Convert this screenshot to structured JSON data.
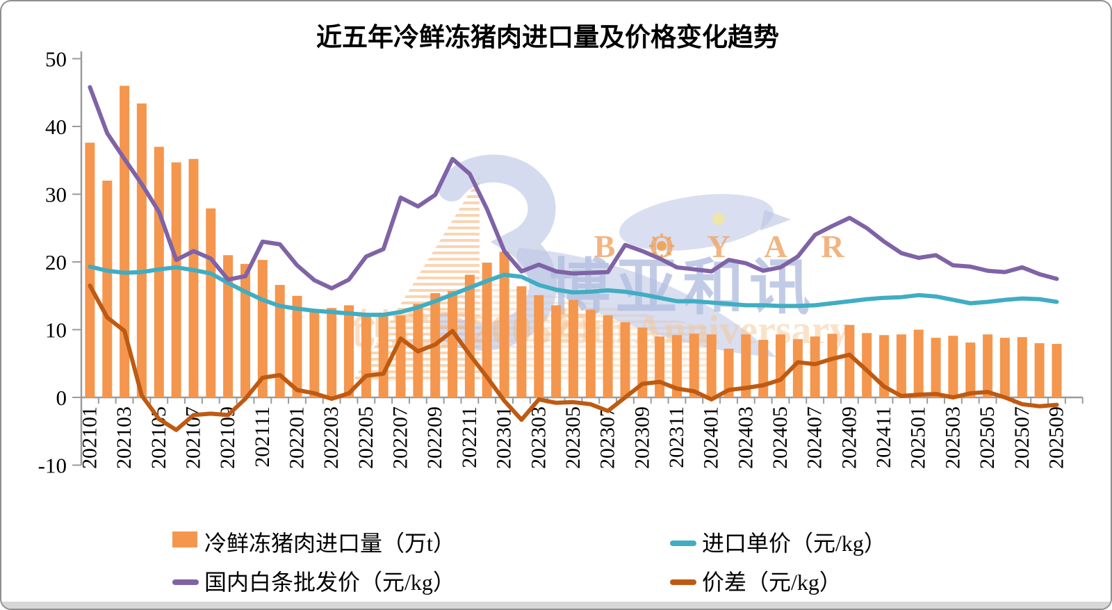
{
  "title": "近五年冷鲜冻猪肉进口量及价格变化趋势",
  "watermark": {
    "letters": [
      "B",
      "O",
      "Y",
      "A",
      "R"
    ],
    "brand_cn": "博亚和讯",
    "founding_text": "创立于2005年",
    "anniversary_text": "20th Anniversary"
  },
  "axis_color": "#9b9b9b",
  "chart_data": {
    "type": "combo-bar-line",
    "ylim": [
      -10,
      50
    ],
    "yticks": [
      50,
      40,
      30,
      20,
      10,
      0,
      -10
    ],
    "x_label_every": 2,
    "grid": false,
    "legend_position": "bottom",
    "categories": [
      "202101",
      "202102",
      "202103",
      "202104",
      "202105",
      "202106",
      "202107",
      "202108",
      "202109",
      "202110",
      "202111",
      "202112",
      "202201",
      "202202",
      "202203",
      "202204",
      "202205",
      "202206",
      "202207",
      "202208",
      "202209",
      "202210",
      "202211",
      "202212",
      "202301",
      "202302",
      "202303",
      "202304",
      "202305",
      "202306",
      "202307",
      "202308",
      "202309",
      "202310",
      "202311",
      "202312",
      "202401",
      "202402",
      "202403",
      "202404",
      "202405",
      "202406",
      "202407",
      "202408",
      "202409",
      "202410",
      "202411",
      "202412",
      "202501",
      "202502",
      "202503",
      "202504",
      "202505",
      "202506",
      "202507",
      "202508",
      "202509"
    ],
    "series": [
      {
        "key": "import-volume",
        "name": "冷鲜冻猪肉进口量（万t）",
        "type": "bar",
        "color": "#F4964D",
        "values": [
          37.6,
          32.0,
          46.0,
          43.4,
          37.0,
          34.7,
          35.2,
          27.9,
          21.0,
          19.7,
          20.3,
          16.6,
          15.0,
          12.6,
          13.2,
          13.6,
          12.4,
          12.5,
          12.1,
          13.8,
          15.4,
          15.7,
          18.1,
          19.9,
          21.5,
          16.4,
          15.1,
          13.6,
          14.4,
          12.9,
          12.1,
          11.1,
          10.3,
          9.0,
          9.2,
          9.4,
          9.3,
          7.2,
          9.3,
          8.5,
          9.3,
          8.6,
          9.0,
          9.4,
          10.7,
          9.5,
          9.2,
          9.3,
          10.0,
          8.8,
          9.1,
          8.1,
          9.3,
          8.8,
          8.9,
          8.0,
          7.9
        ]
      },
      {
        "key": "import-price",
        "name": "进口单价（元/kg）",
        "type": "line",
        "color": "#40ADC2",
        "values": [
          19.3,
          18.7,
          18.4,
          18.5,
          18.9,
          19.2,
          18.8,
          18.3,
          16.9,
          15.6,
          14.4,
          13.5,
          13.1,
          12.8,
          12.6,
          12.4,
          12.2,
          12.2,
          12.6,
          13.3,
          14.2,
          15.2,
          16.2,
          17.2,
          18.1,
          17.8,
          16.6,
          15.9,
          15.5,
          15.6,
          15.8,
          15.6,
          15.2,
          14.7,
          14.2,
          14.2,
          14.0,
          13.8,
          13.6,
          13.6,
          13.5,
          13.5,
          13.6,
          13.9,
          14.2,
          14.5,
          14.7,
          14.8,
          15.1,
          14.9,
          14.4,
          13.9,
          14.1,
          14.4,
          14.6,
          14.5,
          14.1
        ]
      },
      {
        "key": "wholesale-price",
        "name": "国内白条批发价（元/kg）",
        "type": "line",
        "color": "#7F63A6",
        "values": [
          45.8,
          39.0,
          35.2,
          31.5,
          27.4,
          20.3,
          21.6,
          20.5,
          17.4,
          17.9,
          23.0,
          22.6,
          19.5,
          17.3,
          16.1,
          17.4,
          20.8,
          21.9,
          29.5,
          28.2,
          29.9,
          35.2,
          33.0,
          27.8,
          21.6,
          18.6,
          19.6,
          18.6,
          18.3,
          18.4,
          18.5,
          22.5,
          21.6,
          20.5,
          19.2,
          18.9,
          18.6,
          20.3,
          19.8,
          18.7,
          19.2,
          20.8,
          24.0,
          25.3,
          26.5,
          25.0,
          23.0,
          21.3,
          20.6,
          21.0,
          19.5,
          19.3,
          18.7,
          18.5,
          19.2,
          18.2,
          17.5
        ]
      },
      {
        "key": "price-diff",
        "name": "价差（元/kg）",
        "type": "line",
        "color": "#BF5A12",
        "values": [
          16.5,
          11.8,
          9.8,
          0.3,
          -3.2,
          -4.8,
          -2.6,
          -2.4,
          -2.6,
          -0.2,
          2.9,
          3.3,
          1.1,
          0.6,
          -0.2,
          0.6,
          3.2,
          3.5,
          8.7,
          6.8,
          7.8,
          9.8,
          6.3,
          3.0,
          -0.5,
          -3.3,
          -0.3,
          -0.8,
          -0.7,
          -1.0,
          -2.0,
          0.0,
          2.0,
          2.3,
          1.3,
          0.9,
          -0.3,
          1.1,
          1.4,
          1.8,
          2.6,
          5.2,
          4.9,
          5.7,
          6.3,
          4.0,
          1.6,
          0.2,
          0.4,
          0.5,
          0.0,
          0.6,
          0.8,
          0.0,
          -1.0,
          -1.3,
          -1.1
        ]
      }
    ]
  }
}
